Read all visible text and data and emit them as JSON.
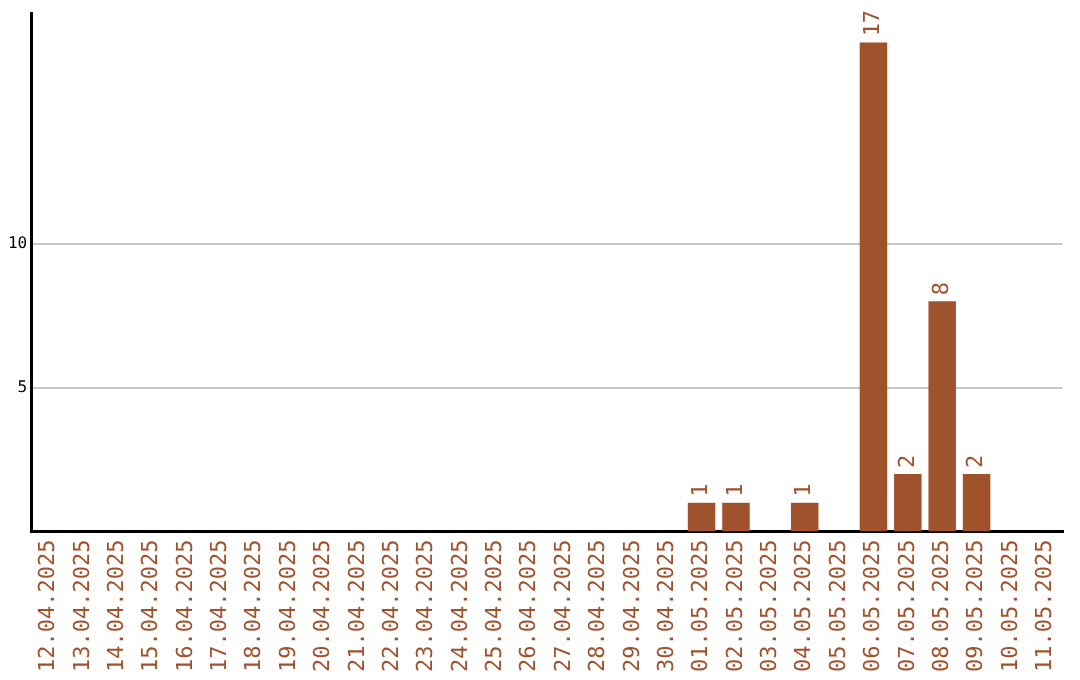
{
  "chart_data": {
    "type": "bar",
    "categories": [
      "12.04.2025",
      "13.04.2025",
      "14.04.2025",
      "15.04.2025",
      "16.04.2025",
      "17.04.2025",
      "18.04.2025",
      "19.04.2025",
      "20.04.2025",
      "21.04.2025",
      "22.04.2025",
      "23.04.2025",
      "24.04.2025",
      "25.04.2025",
      "26.04.2025",
      "27.04.2025",
      "28.04.2025",
      "29.04.2025",
      "30.04.2025",
      "01.05.2025",
      "02.05.2025",
      "03.05.2025",
      "04.05.2025",
      "05.05.2025",
      "06.05.2025",
      "07.05.2025",
      "08.05.2025",
      "09.05.2025",
      "10.05.2025",
      "11.05.2025"
    ],
    "values": [
      0,
      0,
      0,
      0,
      0,
      0,
      0,
      0,
      0,
      0,
      0,
      0,
      0,
      0,
      0,
      0,
      0,
      0,
      0,
      1,
      1,
      0,
      1,
      0,
      17,
      2,
      8,
      2,
      0,
      0
    ],
    "value_labels": [
      null,
      null,
      null,
      null,
      null,
      null,
      null,
      null,
      null,
      null,
      null,
      null,
      null,
      null,
      null,
      null,
      null,
      null,
      null,
      "1",
      "1",
      null,
      "1",
      null,
      "17",
      "2",
      "8",
      "2",
      null,
      null
    ],
    "color": "#a0522d",
    "ylim": [
      0,
      18
    ],
    "yticks": [
      5,
      10
    ],
    "grid": "y"
  }
}
